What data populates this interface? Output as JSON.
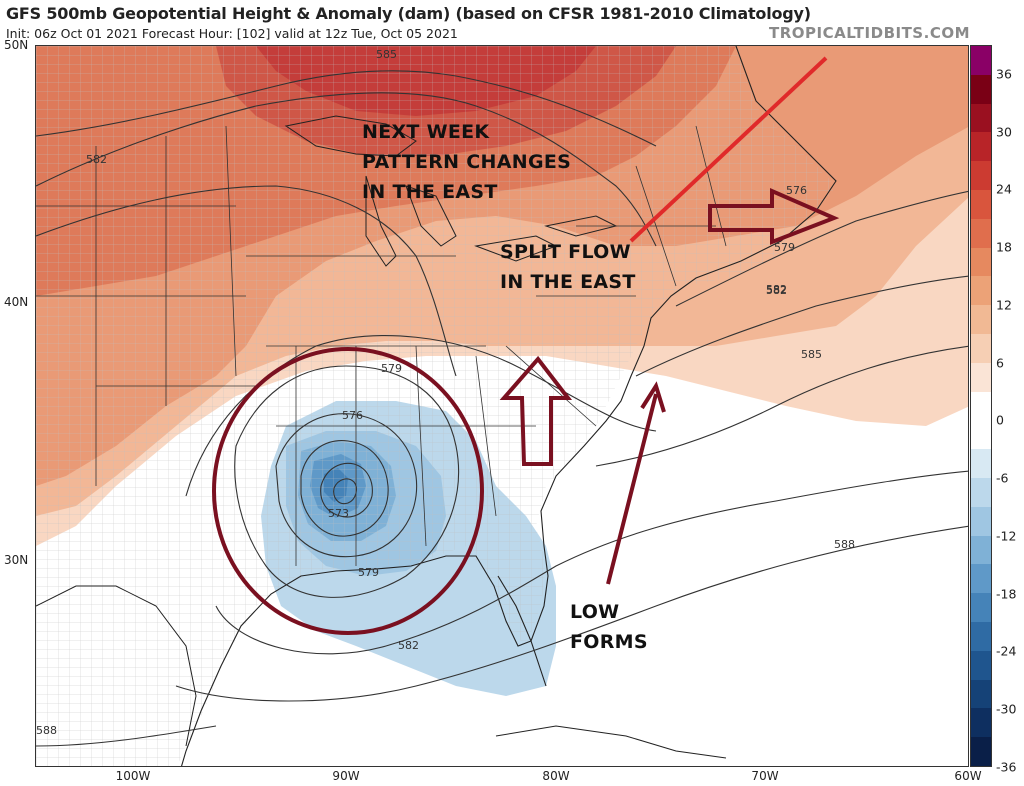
{
  "header": {
    "title": "GFS 500mb Geopotential Height & Anomaly (dam) (based on CFSR 1981-2010 Climatology)",
    "subtitle": "Init: 06z Oct 01 2021   Forecast Hour: [102]   valid at 12z Tue, Oct 05 2021",
    "site": "TROPICALTIDBITS.COM"
  },
  "axes": {
    "lat_labels": [
      "50N",
      "40N",
      "30N"
    ],
    "lon_labels": [
      "100W",
      "90W",
      "80W",
      "70W",
      "60W"
    ]
  },
  "colorbar": {
    "labels": [
      "36",
      "30",
      "24",
      "18",
      "12",
      "6",
      "0",
      "-6",
      "-12",
      "-18",
      "-24",
      "-30",
      "-36"
    ],
    "colors": [
      "#8a0066",
      "#7a0015",
      "#9a1020",
      "#b82428",
      "#cc3b31",
      "#d9553d",
      "#e06e4d",
      "#e6895f",
      "#eca277",
      "#f1b994",
      "#f6cfb4",
      "#fae4d6",
      "#ffffff",
      "#ffffff",
      "#d8e9f3",
      "#bcd8eb",
      "#9fc6e2",
      "#7fb1d6",
      "#5f99c8",
      "#4583b8",
      "#2f6ba4",
      "#1f558e",
      "#154277",
      "#0e2f60",
      "#0a1f48"
    ]
  },
  "contour_labels": [
    "582",
    "585",
    "582",
    "576",
    "579",
    "582",
    "585",
    "579",
    "576",
    "573",
    "579",
    "582",
    "588",
    "588"
  ],
  "annotations": {
    "pattern_line1": "NEXT WEEK",
    "pattern_line2": "PATTERN CHANGES",
    "pattern_line3": "IN THE EAST",
    "split_line1": "SPLIT FLOW",
    "split_line2": "IN THE EAST",
    "low_line1": "LOW",
    "low_line2": "FORMS"
  }
}
